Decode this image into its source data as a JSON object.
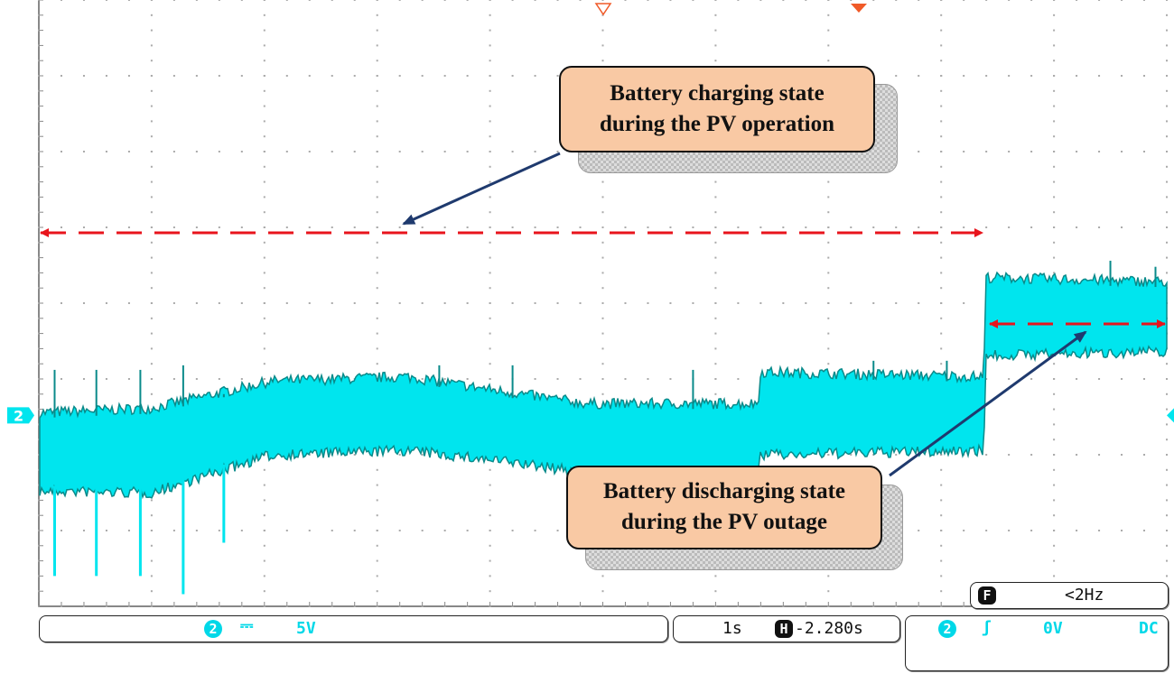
{
  "chart_data": {
    "type": "line",
    "title": "",
    "xlabel": "",
    "ylabel": "",
    "grid": true,
    "xlim": [
      0,
      10
    ],
    "ylim": [
      -12.6,
      27.4
    ],
    "x_units": "s",
    "y_units": "V",
    "series": [
      {
        "color": "#00e5ee",
        "envelope": {
          "t": [
            0.0,
            1.0,
            2.06,
            3.26,
            4.14,
            4.86,
            6.38,
            6.39,
            8.38,
            8.39,
            10.0
          ],
          "upper": [
            -0.18,
            0.12,
            1.9,
            2.2,
            1.2,
            0.42,
            0.42,
            2.5,
            2.2,
            8.75,
            8.45
          ],
          "lower": [
            -4.64,
            -4.76,
            -2.26,
            -1.96,
            -2.7,
            -3.45,
            -3.45,
            -2.26,
            -1.96,
            4.29,
            4.58
          ]
        },
        "spikes_down": [
          [
            0.14,
            -10.6
          ],
          [
            0.51,
            -10.6
          ],
          [
            0.9,
            -10.6
          ],
          [
            1.28,
            -11.8
          ],
          [
            1.64,
            -8.4
          ],
          [
            4.7,
            -7.0
          ],
          [
            5.06,
            -7.4
          ],
          [
            5.42,
            -7.4
          ],
          [
            5.82,
            -7.4
          ],
          [
            6.22,
            -7.4
          ]
        ],
        "spikes_up": [
          [
            0.14,
            3.0
          ],
          [
            0.51,
            3.0
          ],
          [
            0.9,
            3.0
          ],
          [
            1.28,
            3.3
          ],
          [
            1.64,
            1.4
          ],
          [
            3.55,
            3.3
          ],
          [
            4.2,
            3.3
          ],
          [
            5.8,
            3.0
          ],
          [
            7.4,
            3.6
          ],
          [
            8.05,
            3.6
          ],
          [
            9.5,
            10.2
          ],
          [
            9.9,
            9.8
          ]
        ]
      }
    ],
    "annotations": [
      {
        "text_lines": [
          "Battery charging state",
          "during the PV operation"
        ]
      },
      {
        "text_lines": [
          "Battery discharging state",
          "during the PV outage"
        ]
      }
    ]
  },
  "scope": {
    "channel_marker": "2",
    "channel": {
      "number": "2",
      "coupling_icon": "dc-coupling-icon",
      "scale": "5V"
    },
    "timebase": {
      "scale": "1s",
      "h_icon": "H",
      "position": "-2.280s"
    },
    "trigger": {
      "number": "2",
      "slope_icon": "rising-edge-icon",
      "level": "0V",
      "coupling": "DC"
    },
    "frequency": {
      "icon": "F",
      "value": "<2Hz"
    },
    "colors": {
      "trace": "#00e5ee",
      "trace_dark": "#0a8a8a",
      "annotation_line": "#e8141c",
      "arrow": "#1f3a6e",
      "callout": "#f9c9a4",
      "trigger_marker": "#f05a28"
    }
  }
}
